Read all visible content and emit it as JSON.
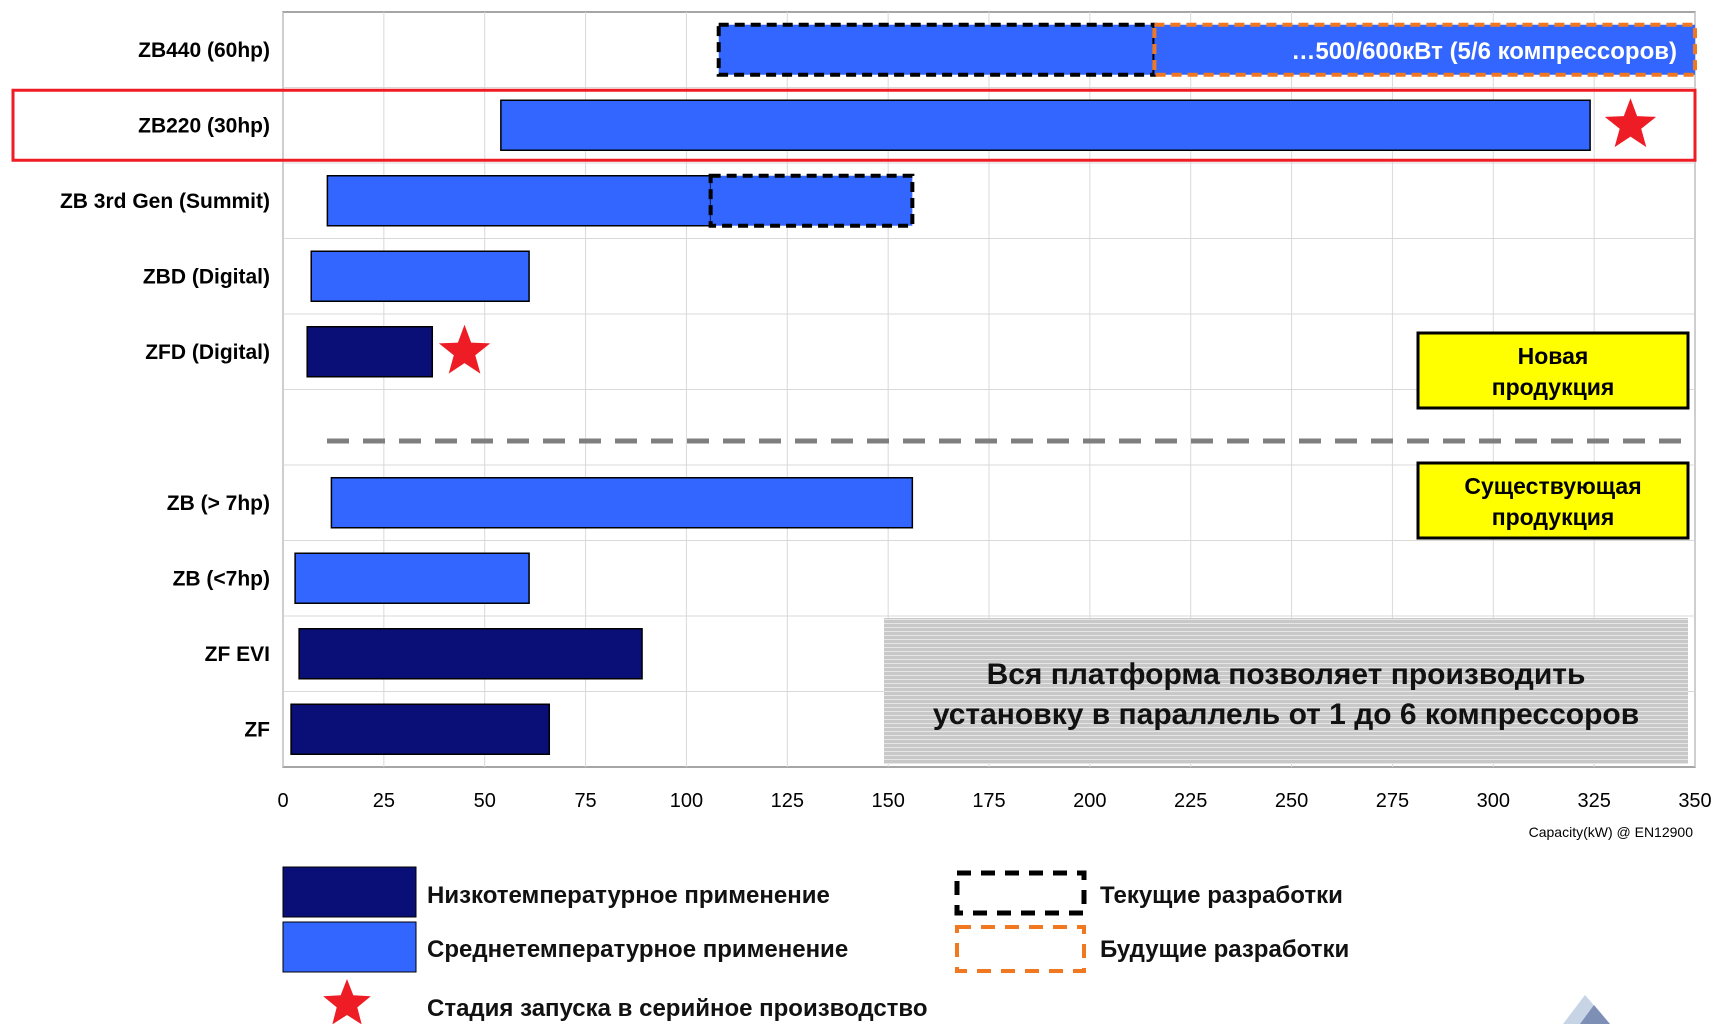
{
  "chart_data": {
    "type": "gantt-bar",
    "x_axis": {
      "min": 0,
      "max": 350,
      "ticks": [
        0,
        25,
        50,
        75,
        100,
        125,
        150,
        175,
        200,
        225,
        250,
        275,
        300,
        325,
        350
      ],
      "label": "Capacity(kW) @ EN12900"
    },
    "colors": {
      "low_temp": "#0a0f78",
      "medium_temp": "#3366ff",
      "highlight": "#ee1c24",
      "current_dev": "#000000",
      "future_dev": "#f07820",
      "callout": "#ffff00"
    },
    "rows": [
      {
        "label": "ZB440 (60hp)",
        "bars": [
          {
            "start": 108,
            "end": 216,
            "type": "medium",
            "dev": "current"
          },
          {
            "start": 216,
            "end": 350,
            "type": "medium",
            "dev": "future",
            "text": "…500/600кВт (5/6 компрессоров)"
          }
        ]
      },
      {
        "label": "ZB220 (30hp)",
        "highlighted": true,
        "star_at": 334,
        "bars": [
          {
            "start": 54,
            "end": 324,
            "type": "medium"
          }
        ]
      },
      {
        "label": "ZB  3rd Gen (Summit)",
        "bars": [
          {
            "start": 11,
            "end": 106,
            "type": "medium"
          },
          {
            "start": 106,
            "end": 156,
            "type": "medium",
            "dev": "current"
          }
        ]
      },
      {
        "label": "ZBD (Digital)",
        "bars": [
          {
            "start": 7,
            "end": 61,
            "type": "medium"
          }
        ]
      },
      {
        "label": "ZFD (Digital)",
        "star_at": 45,
        "bars": [
          {
            "start": 6,
            "end": 37,
            "type": "low"
          }
        ]
      },
      {
        "label": "",
        "separator": true,
        "bars": []
      },
      {
        "label": "ZB (> 7hp)",
        "bars": [
          {
            "start": 12,
            "end": 156,
            "type": "medium"
          }
        ]
      },
      {
        "label": "ZB (<7hp)",
        "bars": [
          {
            "start": 3,
            "end": 61,
            "type": "medium"
          }
        ]
      },
      {
        "label": "ZF EVI",
        "bars": [
          {
            "start": 4,
            "end": 89,
            "type": "low"
          }
        ]
      },
      {
        "label": "ZF",
        "bars": [
          {
            "start": 2,
            "end": 66,
            "type": "low"
          }
        ]
      }
    ],
    "callouts": {
      "new_products": [
        "Новая",
        "продукция"
      ],
      "existing_products": [
        "Существующая",
        "продукция"
      ]
    },
    "note": [
      "Вся платформа позволяет производить",
      "установку в параллель от 1 до 6 компрессоров"
    ],
    "legend": [
      {
        "key": "low",
        "text": "Низкотемпературное применение"
      },
      {
        "key": "medium",
        "text": "Среднетемпературное применение"
      },
      {
        "key": "star",
        "text": "Стадия запуска в  серийное производство"
      },
      {
        "key": "current",
        "text": "Текущие разработки"
      },
      {
        "key": "future",
        "text": "Будущие разработки"
      }
    ]
  }
}
